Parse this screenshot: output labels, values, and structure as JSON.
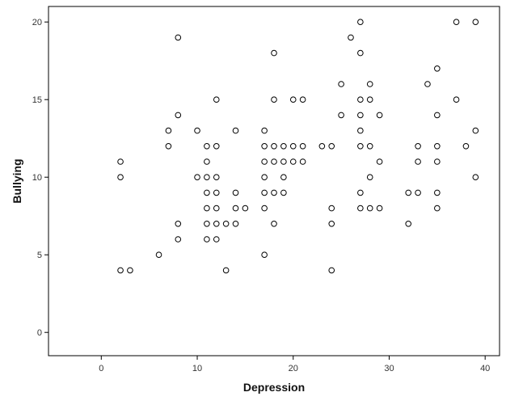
{
  "chart_data": {
    "type": "scatter",
    "title": "",
    "xlabel": "Depression",
    "ylabel": "Bullying",
    "xlim": [
      -5.5,
      41.5
    ],
    "ylim": [
      -1.5,
      21
    ],
    "xticks": [
      0,
      10,
      20,
      30,
      40
    ],
    "yticks": [
      0,
      5,
      10,
      15,
      20
    ],
    "grid": false,
    "legend": "none",
    "marker": "open-circle",
    "colors": {
      "marker_stroke": "#000000",
      "axis": "#000000",
      "background": "#ffffff"
    },
    "points": [
      [
        2,
        4
      ],
      [
        2,
        10
      ],
      [
        2,
        11
      ],
      [
        3,
        4
      ],
      [
        6,
        5
      ],
      [
        7,
        12
      ],
      [
        7,
        13
      ],
      [
        8,
        6
      ],
      [
        8,
        7
      ],
      [
        8,
        14
      ],
      [
        8,
        19
      ],
      [
        10,
        10
      ],
      [
        10,
        13
      ],
      [
        11,
        6
      ],
      [
        11,
        7
      ],
      [
        11,
        8
      ],
      [
        11,
        9
      ],
      [
        11,
        10
      ],
      [
        11,
        11
      ],
      [
        11,
        12
      ],
      [
        12,
        6
      ],
      [
        12,
        7
      ],
      [
        12,
        8
      ],
      [
        12,
        9
      ],
      [
        12,
        10
      ],
      [
        12,
        12
      ],
      [
        12,
        15
      ],
      [
        13,
        4
      ],
      [
        13,
        7
      ],
      [
        14,
        7
      ],
      [
        14,
        8
      ],
      [
        14,
        9
      ],
      [
        14,
        13
      ],
      [
        15,
        8
      ],
      [
        17,
        5
      ],
      [
        17,
        8
      ],
      [
        17,
        9
      ],
      [
        17,
        10
      ],
      [
        17,
        11
      ],
      [
        17,
        12
      ],
      [
        17,
        13
      ],
      [
        18,
        7
      ],
      [
        18,
        9
      ],
      [
        18,
        11
      ],
      [
        18,
        12
      ],
      [
        18,
        15
      ],
      [
        18,
        18
      ],
      [
        19,
        9
      ],
      [
        19,
        10
      ],
      [
        19,
        11
      ],
      [
        19,
        12
      ],
      [
        20,
        11
      ],
      [
        20,
        12
      ],
      [
        20,
        15
      ],
      [
        21,
        11
      ],
      [
        21,
        12
      ],
      [
        21,
        15
      ],
      [
        23,
        12
      ],
      [
        24,
        4
      ],
      [
        24,
        7
      ],
      [
        24,
        8
      ],
      [
        24,
        12
      ],
      [
        25,
        14
      ],
      [
        25,
        16
      ],
      [
        26,
        19
      ],
      [
        27,
        8
      ],
      [
        27,
        9
      ],
      [
        27,
        12
      ],
      [
        27,
        13
      ],
      [
        27,
        14
      ],
      [
        27,
        15
      ],
      [
        27,
        18
      ],
      [
        27,
        20
      ],
      [
        28,
        8
      ],
      [
        28,
        10
      ],
      [
        28,
        12
      ],
      [
        28,
        15
      ],
      [
        28,
        16
      ],
      [
        29,
        8
      ],
      [
        29,
        11
      ],
      [
        29,
        14
      ],
      [
        32,
        7
      ],
      [
        32,
        9
      ],
      [
        33,
        9
      ],
      [
        33,
        11
      ],
      [
        33,
        12
      ],
      [
        34,
        16
      ],
      [
        35,
        8
      ],
      [
        35,
        9
      ],
      [
        35,
        11
      ],
      [
        35,
        12
      ],
      [
        35,
        14
      ],
      [
        35,
        17
      ],
      [
        37,
        15
      ],
      [
        37,
        20
      ],
      [
        38,
        12
      ],
      [
        39,
        10
      ],
      [
        39,
        13
      ],
      [
        39,
        20
      ]
    ]
  }
}
